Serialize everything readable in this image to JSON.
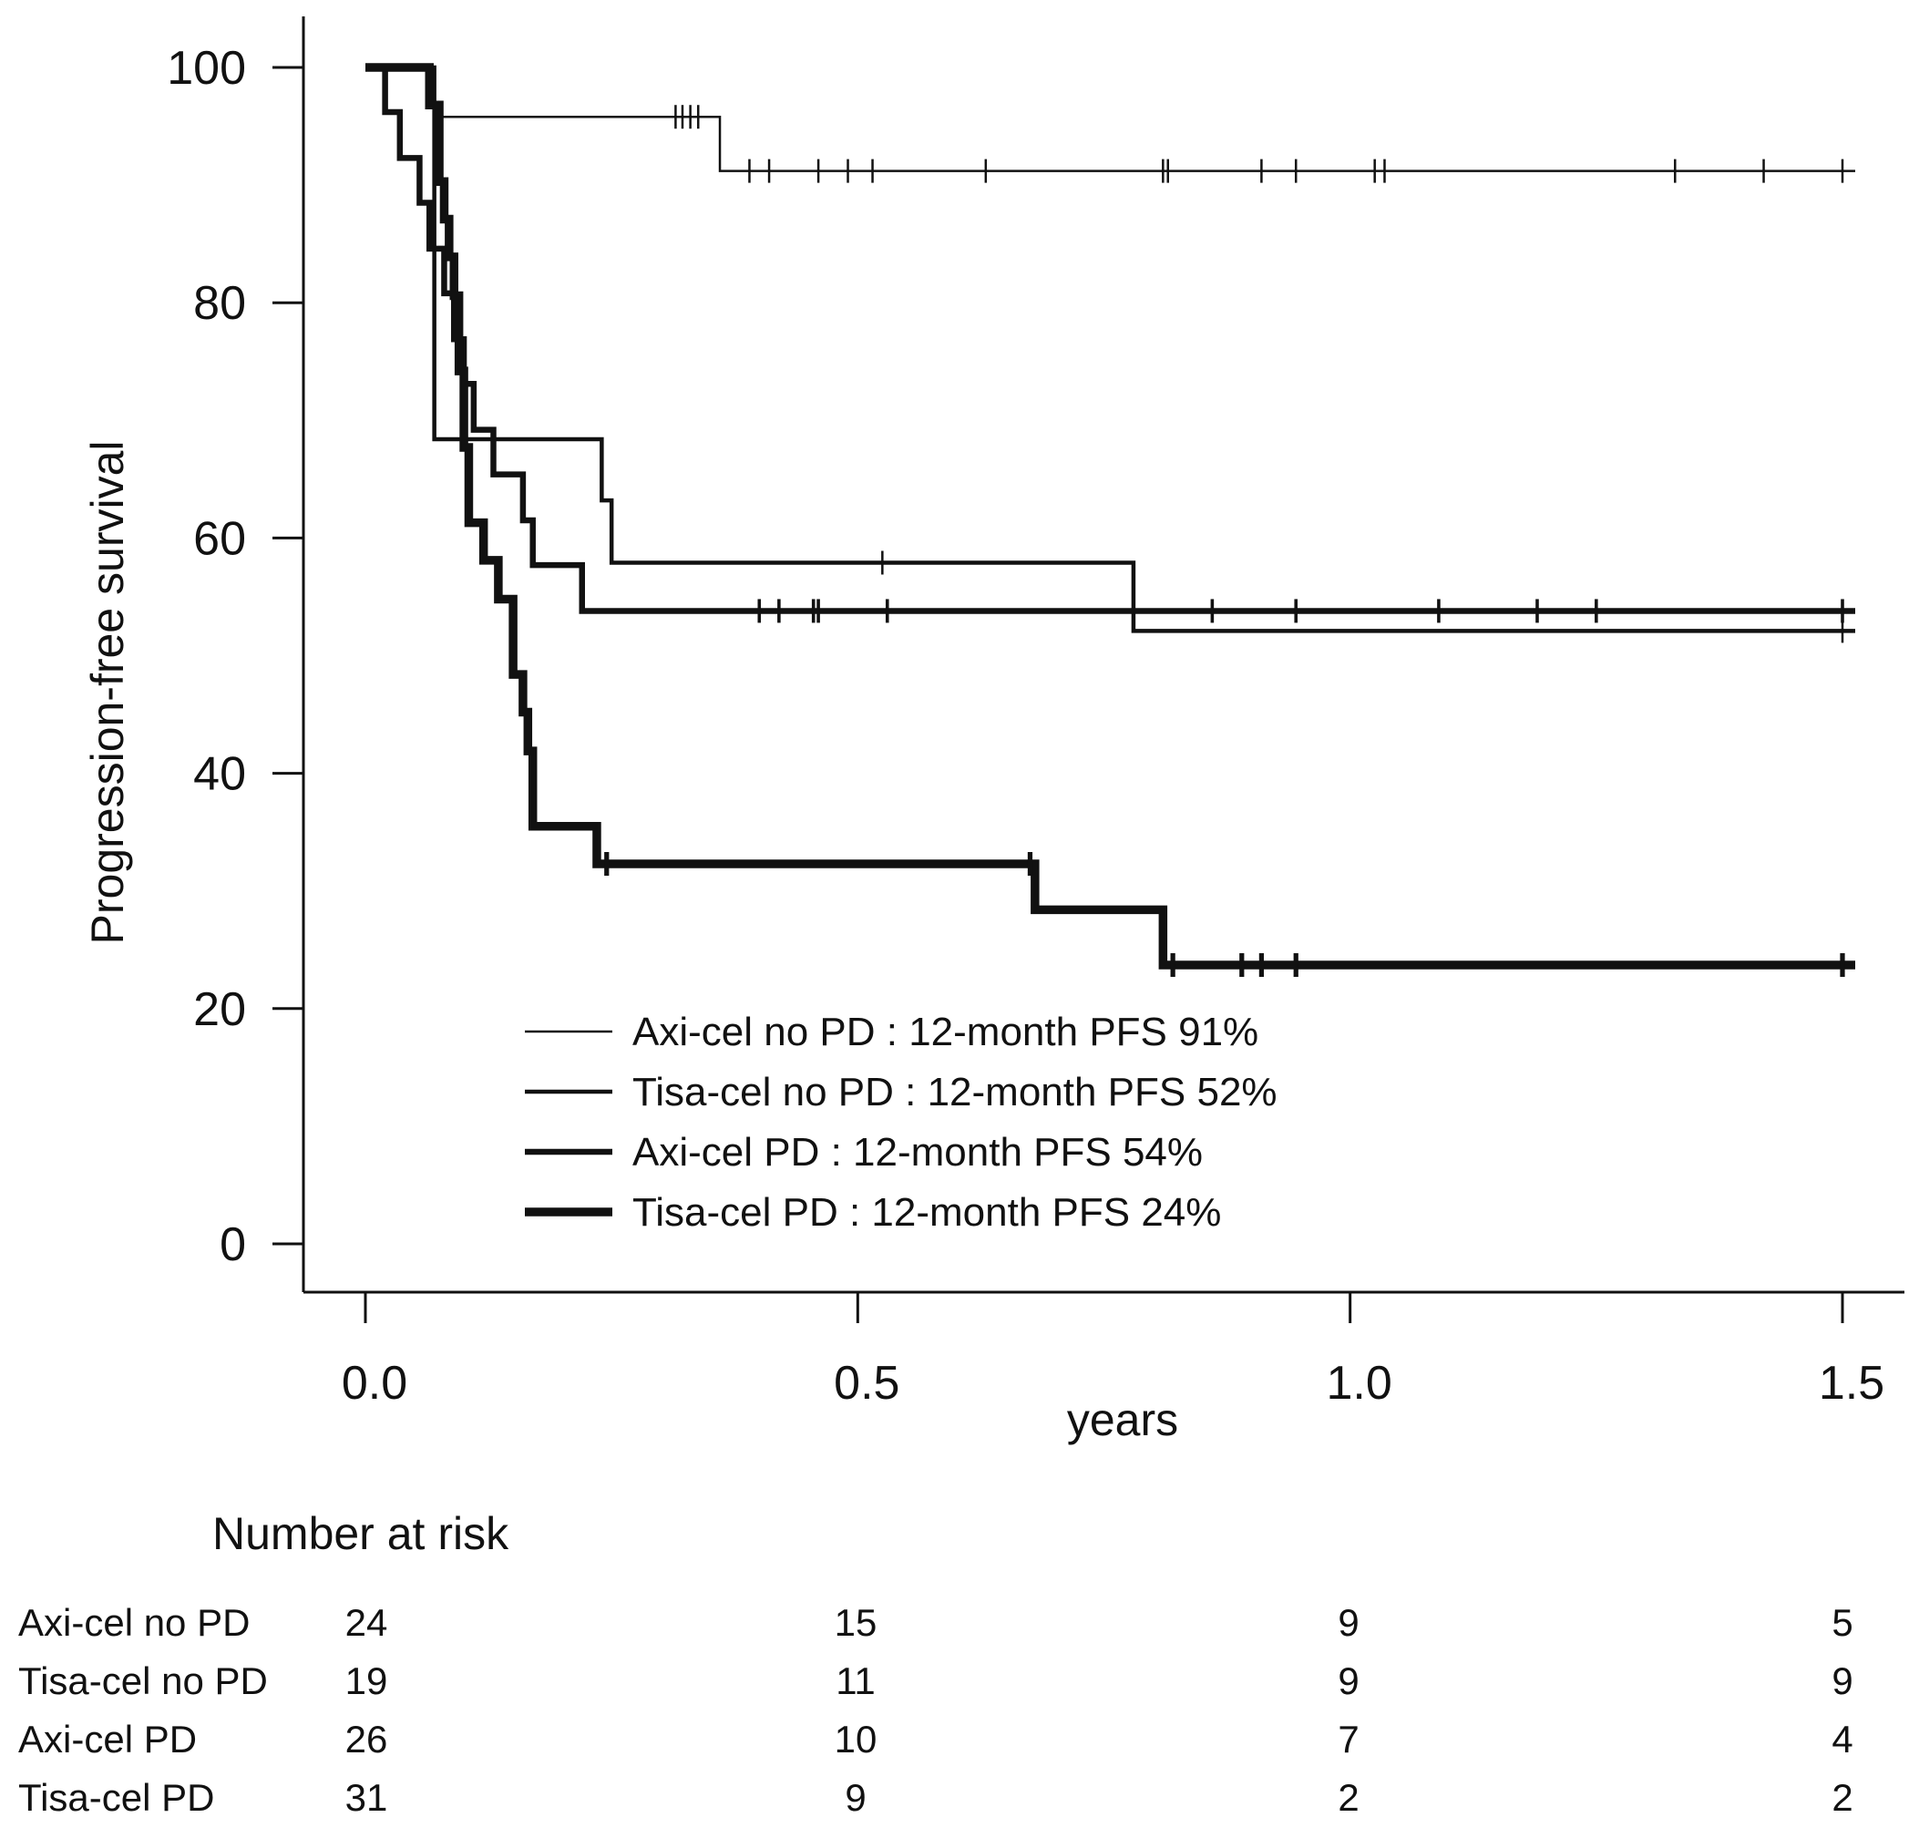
{
  "chart_data": {
    "type": "line",
    "subtype": "kaplan-meier step",
    "xlabel": "years",
    "ylabel": "Progression-free survival",
    "xlim": [
      0,
      1.5
    ],
    "ylim": [
      0,
      100
    ],
    "xticks": [
      "0.0",
      "0.5",
      "1.0",
      "1.5"
    ],
    "xtick_values": [
      0,
      0.5,
      1.0,
      1.5
    ],
    "yticks": [
      "0",
      "20",
      "40",
      "60",
      "80",
      "100"
    ],
    "ytick_values": [
      0,
      20,
      40,
      60,
      80,
      100
    ],
    "grid": false,
    "legend_position": "bottom-center",
    "series": [
      {
        "name": "Axi-cel no PD",
        "legend_label": "Axi-cel no PD : 12-month PFS 91%",
        "line_weight": "thin",
        "steps": [
          [
            0,
            100
          ],
          [
            0.07,
            95.8
          ],
          [
            0.36,
            91.2
          ],
          [
            1.5,
            91.2
          ]
        ],
        "censor_times": [
          0.315,
          0.322,
          0.33,
          0.338,
          0.39,
          0.41,
          0.46,
          0.49,
          0.515,
          0.63,
          0.81,
          0.815,
          0.91,
          0.945,
          1.025,
          1.035,
          1.33,
          1.42,
          1.5
        ]
      },
      {
        "name": "Tisa-cel no PD",
        "legend_label": "Tisa-cel no PD : 12-month PFS 52%",
        "line_weight": "medium",
        "steps": [
          [
            0,
            100
          ],
          [
            0.07,
            68.4
          ],
          [
            0.24,
            63.2
          ],
          [
            0.25,
            57.9
          ],
          [
            0.78,
            52.1
          ],
          [
            1.5,
            52.1
          ]
        ],
        "censor_times": [
          0.525,
          1.5
        ]
      },
      {
        "name": "Axi-cel PD",
        "legend_label": "Axi-cel PD : 12-month PFS 54%",
        "line_weight": "thick",
        "steps": [
          [
            0,
            100
          ],
          [
            0.02,
            96.2
          ],
          [
            0.035,
            92.3
          ],
          [
            0.055,
            88.5
          ],
          [
            0.065,
            84.6
          ],
          [
            0.08,
            80.8
          ],
          [
            0.09,
            76.9
          ],
          [
            0.1,
            73.1
          ],
          [
            0.11,
            69.2
          ],
          [
            0.13,
            65.4
          ],
          [
            0.16,
            61.5
          ],
          [
            0.17,
            57.7
          ],
          [
            0.22,
            53.8
          ],
          [
            1.5,
            53.8
          ]
        ],
        "censor_times": [
          0.4,
          0.42,
          0.455,
          0.46,
          0.53,
          0.86,
          0.945,
          1.09,
          1.19,
          1.25,
          1.5
        ]
      },
      {
        "name": "Tisa-cel PD",
        "legend_label": "Tisa-cel PD : 12-month PFS 24%",
        "line_weight": "very thick",
        "steps": [
          [
            0,
            100
          ],
          [
            0.065,
            96.8
          ],
          [
            0.075,
            90.3
          ],
          [
            0.08,
            87.1
          ],
          [
            0.085,
            83.9
          ],
          [
            0.09,
            80.6
          ],
          [
            0.095,
            74.2
          ],
          [
            0.1,
            67.7
          ],
          [
            0.105,
            61.3
          ],
          [
            0.12,
            58.1
          ],
          [
            0.135,
            54.8
          ],
          [
            0.15,
            48.4
          ],
          [
            0.16,
            45.2
          ],
          [
            0.165,
            41.9
          ],
          [
            0.17,
            35.5
          ],
          [
            0.235,
            32.3
          ],
          [
            0.68,
            28.4
          ],
          [
            0.81,
            23.7
          ],
          [
            1.5,
            23.7
          ]
        ],
        "censor_times": [
          0.245,
          0.675,
          0.82,
          0.89,
          0.91,
          0.945,
          1.5
        ]
      }
    ]
  },
  "risk_table": {
    "title": "Number at risk",
    "columns": [
      "0.0",
      "0.5",
      "1.0",
      "1.5"
    ],
    "rows": [
      {
        "label": "Axi-cel no PD",
        "values": [
          "24",
          "15",
          "9",
          "5"
        ]
      },
      {
        "label": "Tisa-cel no PD",
        "values": [
          "19",
          "11",
          "9",
          "9"
        ]
      },
      {
        "label": "Axi-cel PD",
        "values": [
          "26",
          "10",
          "7",
          "4"
        ]
      },
      {
        "label": "Tisa-cel PD",
        "values": [
          "31",
          "9",
          "2",
          "2"
        ]
      }
    ]
  },
  "colors": {
    "line": "#111111",
    "background": "#ffffff"
  }
}
